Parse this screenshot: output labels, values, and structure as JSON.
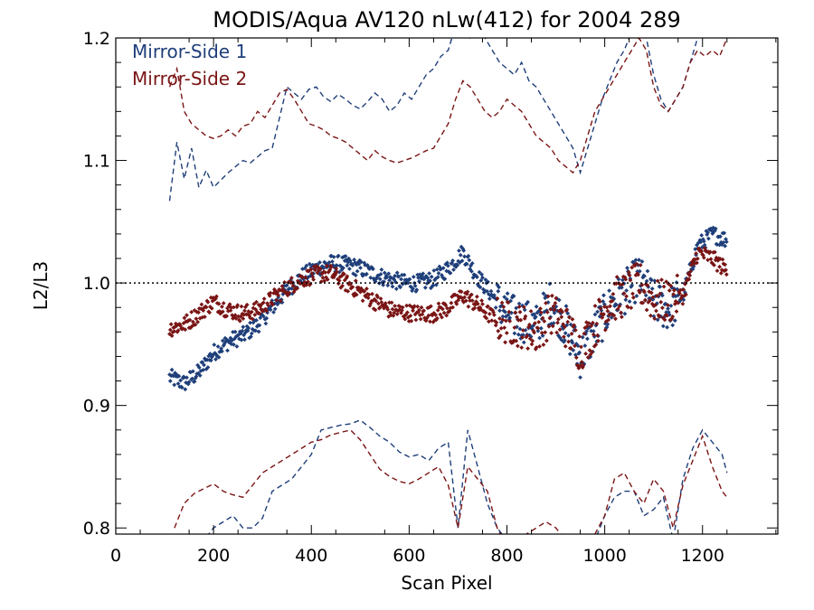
{
  "chart_data": {
    "type": "scatter",
    "title": "MODIS/Aqua AV120 nLw(412) for 2004 289",
    "xlabel": "Scan Pixel",
    "ylabel": "L2/L3",
    "xlim": [
      0,
      1354
    ],
    "ylim": [
      0.795,
      1.2
    ],
    "x_ticks": [
      0,
      200,
      400,
      600,
      800,
      1000,
      1200
    ],
    "x_tick_labels": [
      "0",
      "200",
      "400",
      "600",
      "800",
      "1000",
      "1200"
    ],
    "y_ticks": [
      0.8,
      0.9,
      1.0,
      1.1,
      1.2
    ],
    "y_tick_labels": [
      "0.8",
      "0.9",
      "1.0",
      "1.1",
      "1.2"
    ],
    "reference_line": {
      "y": 1.0,
      "style": "dotted",
      "color": "#000000"
    },
    "legend_position": "top-left",
    "series": [
      {
        "name": "Mirror-Side 1",
        "color": "#1f3f7a",
        "mean": {
          "x": [
            110,
            140,
            170,
            200,
            230,
            260,
            290,
            320,
            350,
            380,
            410,
            440,
            470,
            500,
            530,
            560,
            590,
            620,
            650,
            680,
            710,
            740,
            770,
            800,
            830,
            860,
            890,
            920,
            950,
            980,
            1010,
            1040,
            1070,
            1100,
            1130,
            1160,
            1190,
            1220,
            1250
          ],
          "y": [
            0.923,
            0.918,
            0.927,
            0.943,
            0.952,
            0.957,
            0.966,
            0.98,
            0.994,
            1.005,
            1.012,
            1.016,
            1.015,
            1.012,
            1.007,
            1.003,
            1.0,
            1.0,
            1.003,
            1.012,
            1.025,
            1.005,
            0.99,
            0.975,
            0.97,
            0.965,
            0.985,
            0.965,
            0.94,
            0.96,
            0.98,
            0.992,
            1.005,
            0.985,
            0.978,
            0.99,
            1.03,
            1.04,
            1.035
          ]
        },
        "upper": {
          "x": [
            110,
            125,
            140,
            155,
            170,
            185,
            200,
            215,
            230,
            245,
            260,
            275,
            290,
            305,
            320,
            335,
            350,
            365,
            380,
            395,
            410,
            425,
            440,
            455,
            470,
            485,
            500,
            515,
            530,
            545,
            560,
            575,
            590,
            605,
            620,
            635,
            650,
            665,
            680,
            695,
            710,
            725,
            740,
            755,
            770,
            785,
            800,
            815,
            830,
            845,
            860,
            875,
            890,
            905,
            920,
            935,
            950,
            965,
            980,
            995,
            1010,
            1025,
            1040,
            1055,
            1070,
            1085,
            1100,
            1115,
            1130,
            1145,
            1160,
            1175,
            1190,
            1205,
            1220,
            1235,
            1250
          ],
          "y": [
            1.067,
            1.115,
            1.085,
            1.11,
            1.078,
            1.092,
            1.078,
            1.084,
            1.09,
            1.095,
            1.1,
            1.098,
            1.103,
            1.108,
            1.11,
            1.135,
            1.16,
            1.155,
            1.15,
            1.158,
            1.16,
            1.152,
            1.148,
            1.154,
            1.15,
            1.145,
            1.142,
            1.148,
            1.155,
            1.15,
            1.14,
            1.145,
            1.155,
            1.15,
            1.16,
            1.17,
            1.175,
            1.185,
            1.19,
            1.21,
            1.215,
            1.2,
            1.205,
            1.2,
            1.19,
            1.18,
            1.175,
            1.17,
            1.18,
            1.165,
            1.16,
            1.15,
            1.14,
            1.13,
            1.12,
            1.11,
            1.09,
            1.11,
            1.13,
            1.15,
            1.165,
            1.18,
            1.19,
            1.205,
            1.21,
            1.2,
            1.17,
            1.15,
            1.14,
            1.15,
            1.16,
            1.18,
            1.2,
            1.21,
            1.22,
            1.21,
            1.2
          ]
        },
        "lower": {
          "x": [
            140,
            160,
            180,
            200,
            220,
            240,
            260,
            280,
            300,
            320,
            340,
            360,
            380,
            400,
            420,
            440,
            460,
            480,
            500,
            520,
            540,
            560,
            580,
            600,
            620,
            640,
            660,
            680,
            700,
            720,
            740,
            760,
            780,
            800,
            820,
            840,
            860,
            880,
            900,
            920,
            940,
            960,
            980,
            1000,
            1020,
            1040,
            1060,
            1080,
            1100,
            1120,
            1140,
            1160,
            1180,
            1200,
            1220,
            1240,
            1250
          ],
          "y": [
            0.78,
            0.785,
            0.79,
            0.8,
            0.805,
            0.81,
            0.8,
            0.8,
            0.808,
            0.83,
            0.835,
            0.84,
            0.85,
            0.86,
            0.88,
            0.882,
            0.884,
            0.885,
            0.888,
            0.882,
            0.875,
            0.87,
            0.862,
            0.858,
            0.86,
            0.855,
            0.865,
            0.87,
            0.8,
            0.88,
            0.85,
            0.82,
            0.8,
            0.79,
            0.78,
            0.78,
            0.775,
            0.78,
            0.78,
            0.775,
            0.77,
            0.77,
            0.79,
            0.81,
            0.825,
            0.83,
            0.83,
            0.81,
            0.815,
            0.825,
            0.79,
            0.84,
            0.865,
            0.88,
            0.87,
            0.86,
            0.845
          ]
        }
      },
      {
        "name": "Mirror-Side 2",
        "color": "#7a1515",
        "mean": {
          "x": [
            110,
            140,
            170,
            200,
            230,
            260,
            290,
            320,
            350,
            380,
            410,
            440,
            470,
            500,
            530,
            560,
            590,
            620,
            650,
            680,
            710,
            740,
            770,
            800,
            830,
            860,
            890,
            920,
            950,
            980,
            1010,
            1040,
            1070,
            1100,
            1130,
            1160,
            1190,
            1220,
            1250
          ],
          "y": [
            0.963,
            0.966,
            0.975,
            0.985,
            0.978,
            0.975,
            0.978,
            0.987,
            0.996,
            1.003,
            1.007,
            1.008,
            1.0,
            0.993,
            0.985,
            0.978,
            0.976,
            0.975,
            0.975,
            0.98,
            0.99,
            0.982,
            0.972,
            0.968,
            0.965,
            0.96,
            0.975,
            0.965,
            0.945,
            0.965,
            0.985,
            0.99,
            1.0,
            0.985,
            0.985,
            0.99,
            1.025,
            1.02,
            1.01
          ]
        },
        "upper": {
          "x": [
            110,
            125,
            140,
            155,
            170,
            185,
            200,
            215,
            230,
            245,
            260,
            275,
            290,
            305,
            320,
            335,
            350,
            365,
            380,
            395,
            410,
            425,
            440,
            455,
            470,
            485,
            500,
            515,
            530,
            545,
            560,
            575,
            590,
            605,
            620,
            635,
            650,
            665,
            680,
            695,
            710,
            725,
            740,
            755,
            770,
            785,
            800,
            815,
            830,
            845,
            860,
            875,
            890,
            905,
            920,
            935,
            950,
            965,
            980,
            995,
            1010,
            1025,
            1040,
            1055,
            1070,
            1085,
            1100,
            1115,
            1130,
            1145,
            1160,
            1175,
            1190,
            1205,
            1220,
            1235,
            1250
          ],
          "y": [
            1.16,
            1.175,
            1.14,
            1.13,
            1.125,
            1.12,
            1.118,
            1.12,
            1.125,
            1.12,
            1.128,
            1.13,
            1.14,
            1.135,
            1.145,
            1.155,
            1.158,
            1.15,
            1.14,
            1.13,
            1.128,
            1.125,
            1.12,
            1.118,
            1.115,
            1.11,
            1.105,
            1.1,
            1.108,
            1.103,
            1.1,
            1.098,
            1.1,
            1.102,
            1.105,
            1.108,
            1.11,
            1.12,
            1.13,
            1.15,
            1.165,
            1.16,
            1.15,
            1.14,
            1.135,
            1.14,
            1.15,
            1.145,
            1.14,
            1.13,
            1.12,
            1.115,
            1.11,
            1.1,
            1.095,
            1.09,
            1.1,
            1.12,
            1.14,
            1.15,
            1.16,
            1.17,
            1.18,
            1.19,
            1.2,
            1.19,
            1.16,
            1.145,
            1.14,
            1.15,
            1.16,
            1.18,
            1.19,
            1.185,
            1.19,
            1.185,
            1.2
          ]
        },
        "lower": {
          "x": [
            120,
            140,
            160,
            180,
            200,
            220,
            240,
            260,
            280,
            300,
            320,
            340,
            360,
            380,
            400,
            420,
            440,
            460,
            480,
            500,
            520,
            540,
            560,
            580,
            600,
            620,
            640,
            660,
            680,
            700,
            720,
            740,
            760,
            780,
            800,
            820,
            840,
            860,
            880,
            900,
            920,
            940,
            960,
            980,
            1000,
            1020,
            1040,
            1060,
            1080,
            1100,
            1120,
            1140,
            1160,
            1180,
            1200,
            1220,
            1240,
            1250
          ],
          "y": [
            0.8,
            0.82,
            0.828,
            0.832,
            0.836,
            0.83,
            0.827,
            0.825,
            0.835,
            0.845,
            0.85,
            0.855,
            0.86,
            0.865,
            0.87,
            0.872,
            0.876,
            0.878,
            0.88,
            0.872,
            0.86,
            0.848,
            0.842,
            0.838,
            0.836,
            0.84,
            0.845,
            0.85,
            0.835,
            0.8,
            0.85,
            0.84,
            0.83,
            0.8,
            0.785,
            0.79,
            0.795,
            0.8,
            0.805,
            0.8,
            0.79,
            0.78,
            0.78,
            0.795,
            0.81,
            0.84,
            0.845,
            0.83,
            0.82,
            0.84,
            0.83,
            0.8,
            0.835,
            0.855,
            0.875,
            0.85,
            0.83,
            0.825
          ]
        }
      }
    ]
  }
}
